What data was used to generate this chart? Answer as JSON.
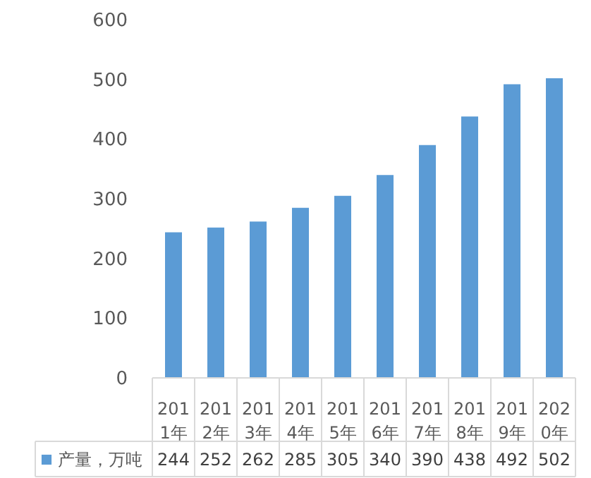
{
  "chart_data": {
    "type": "bar",
    "categories": [
      "2011年",
      "2012年",
      "2013年",
      "2014年",
      "2015年",
      "2016年",
      "2017年",
      "2018年",
      "2019年",
      "2020年"
    ],
    "series": [
      {
        "name": "产量，万吨",
        "color": "#5b9bd5",
        "values": [
          244,
          252,
          262,
          285,
          305,
          340,
          390,
          438,
          492,
          502
        ]
      }
    ],
    "ylim": [
      0,
      600
    ],
    "yticks": [
      0,
      100,
      200,
      300,
      400,
      500,
      600
    ],
    "data_labels": true,
    "legend": "bottom"
  }
}
